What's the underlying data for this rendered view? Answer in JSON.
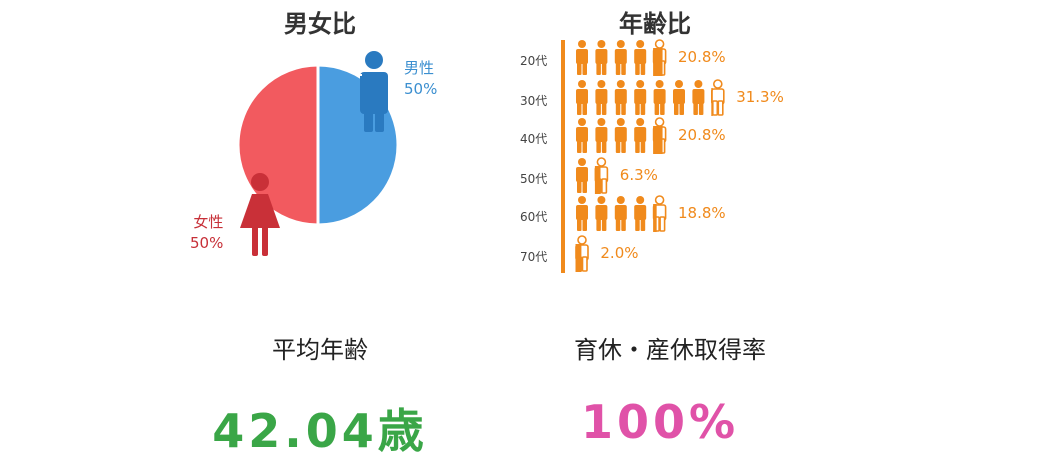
{
  "titles": {
    "gender": "男女比",
    "age": "年齢比",
    "avg_age": "平均年齢",
    "leave": "育休・産休取得率"
  },
  "values": {
    "avg_age": "42.04歳",
    "leave_rate": "100%"
  },
  "gender_labels": {
    "male_name": "男性",
    "male_pct": "50%",
    "female_name": "女性",
    "female_pct": "50%"
  },
  "icons": {
    "male": "male-person-icon",
    "female": "female-person-icon",
    "age": "person-icon"
  },
  "colors": {
    "male": "#4a9de0",
    "female": "#f25a5f",
    "male_figure": "#2a7ac0",
    "female_figure": "#c93038",
    "age": "#f08a1c",
    "avg": "#3aa647",
    "leave": "#e052a8"
  },
  "chart_data": [
    {
      "type": "pie",
      "title": "男女比",
      "categories": [
        "男性",
        "女性"
      ],
      "values": [
        50,
        50
      ]
    },
    {
      "type": "bar",
      "title": "年齢比",
      "categories": [
        "20代",
        "30代",
        "40代",
        "50代",
        "60代",
        "70代"
      ],
      "values": [
        20.8,
        31.3,
        20.8,
        6.3,
        18.8,
        2.0
      ],
      "value_labels": [
        "20.8%",
        "31.3%",
        "20.8%",
        "6.3%",
        "18.8%",
        "2.0%"
      ]
    }
  ]
}
